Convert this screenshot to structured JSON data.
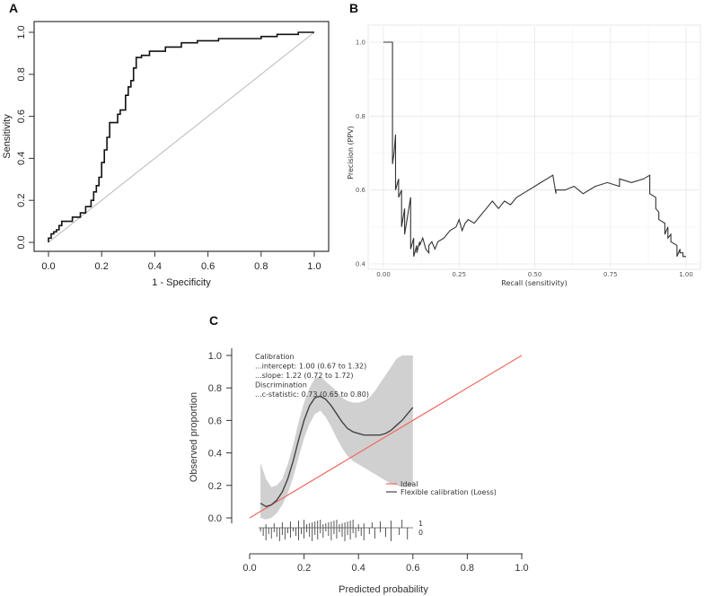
{
  "chart_data": [
    {
      "panel": "A",
      "type": "line",
      "title": "",
      "xlabel": "1 - Specificity",
      "ylabel": "Sensitivity",
      "xlim": [
        0,
        1
      ],
      "ylim": [
        0,
        1
      ],
      "xticks": [
        "0.0",
        "0.2",
        "0.4",
        "0.6",
        "0.8",
        "1.0"
      ],
      "yticks": [
        "0.0",
        "0.2",
        "0.4",
        "0.6",
        "0.8",
        "1.0"
      ],
      "series": [
        {
          "name": "ROC curve",
          "x": [
            0.0,
            0.0,
            0.01,
            0.01,
            0.02,
            0.02,
            0.03,
            0.03,
            0.04,
            0.04,
            0.05,
            0.05,
            0.09,
            0.09,
            0.12,
            0.12,
            0.14,
            0.14,
            0.16,
            0.16,
            0.17,
            0.17,
            0.18,
            0.18,
            0.19,
            0.19,
            0.2,
            0.2,
            0.21,
            0.21,
            0.22,
            0.22,
            0.23,
            0.23,
            0.24,
            0.24,
            0.26,
            0.26,
            0.27,
            0.27,
            0.29,
            0.29,
            0.3,
            0.3,
            0.31,
            0.31,
            0.32,
            0.32,
            0.33,
            0.33,
            0.34,
            0.34,
            0.35,
            0.35,
            0.38,
            0.38,
            0.44,
            0.44,
            0.5,
            0.5,
            0.56,
            0.56,
            0.64,
            0.64,
            0.72,
            0.72,
            0.8,
            0.8,
            0.86,
            0.86,
            0.94,
            0.94,
            1.0
          ],
          "y": [
            0.0,
            0.02,
            0.02,
            0.04,
            0.04,
            0.05,
            0.05,
            0.06,
            0.06,
            0.08,
            0.08,
            0.1,
            0.1,
            0.12,
            0.12,
            0.14,
            0.14,
            0.17,
            0.17,
            0.2,
            0.2,
            0.24,
            0.24,
            0.27,
            0.27,
            0.31,
            0.31,
            0.38,
            0.38,
            0.44,
            0.44,
            0.5,
            0.5,
            0.57,
            0.57,
            0.57,
            0.57,
            0.61,
            0.61,
            0.63,
            0.63,
            0.7,
            0.7,
            0.74,
            0.74,
            0.77,
            0.77,
            0.83,
            0.83,
            0.88,
            0.88,
            0.88,
            0.88,
            0.89,
            0.89,
            0.91,
            0.91,
            0.93,
            0.93,
            0.95,
            0.95,
            0.96,
            0.96,
            0.97,
            0.97,
            0.97,
            0.97,
            0.98,
            0.98,
            0.99,
            0.99,
            1.0,
            1.0
          ]
        },
        {
          "name": "Reference line",
          "x": [
            0,
            1
          ],
          "y": [
            0,
            1
          ]
        }
      ]
    },
    {
      "panel": "B",
      "type": "line",
      "title": "",
      "xlabel": "Recall (sensitivity)",
      "ylabel": "Precision (PPV)",
      "xlim": [
        0,
        1
      ],
      "ylim": [
        0.4,
        1.0
      ],
      "xticks": [
        "0.00",
        "0.25",
        "0.50",
        "0.75",
        "1.00"
      ],
      "yticks": [
        "0.4",
        "0.6",
        "0.8",
        "1.0"
      ],
      "series": [
        {
          "name": "Precision-recall curve",
          "x": [
            0.0,
            0.03,
            0.03,
            0.03,
            0.035,
            0.04,
            0.04,
            0.05,
            0.05,
            0.06,
            0.06,
            0.07,
            0.07,
            0.09,
            0.09,
            0.1,
            0.1,
            0.11,
            0.11,
            0.12,
            0.12,
            0.13,
            0.14,
            0.15,
            0.15,
            0.16,
            0.17,
            0.18,
            0.2,
            0.22,
            0.24,
            0.25,
            0.26,
            0.27,
            0.28,
            0.3,
            0.32,
            0.34,
            0.36,
            0.38,
            0.4,
            0.42,
            0.44,
            0.46,
            0.48,
            0.5,
            0.52,
            0.54,
            0.56,
            0.57,
            0.57,
            0.6,
            0.63,
            0.66,
            0.7,
            0.74,
            0.78,
            0.78,
            0.82,
            0.86,
            0.88,
            0.88,
            0.9,
            0.9,
            0.91,
            0.91,
            0.93,
            0.93,
            0.94,
            0.94,
            0.95,
            0.95,
            0.97,
            0.97,
            0.98,
            0.98,
            0.99,
            0.99,
            1.0
          ],
          "y": [
            1.0,
            1.0,
            0.98,
            0.67,
            0.7,
            0.75,
            0.6,
            0.63,
            0.58,
            0.6,
            0.5,
            0.55,
            0.48,
            0.58,
            0.44,
            0.47,
            0.42,
            0.45,
            0.43,
            0.46,
            0.45,
            0.47,
            0.44,
            0.43,
            0.45,
            0.46,
            0.44,
            0.46,
            0.47,
            0.49,
            0.5,
            0.52,
            0.49,
            0.51,
            0.52,
            0.51,
            0.53,
            0.55,
            0.57,
            0.55,
            0.57,
            0.56,
            0.58,
            0.59,
            0.6,
            0.61,
            0.62,
            0.63,
            0.64,
            0.59,
            0.6,
            0.6,
            0.61,
            0.59,
            0.61,
            0.62,
            0.61,
            0.63,
            0.62,
            0.63,
            0.64,
            0.59,
            0.58,
            0.55,
            0.54,
            0.52,
            0.51,
            0.48,
            0.5,
            0.47,
            0.48,
            0.46,
            0.45,
            0.42,
            0.44,
            0.43,
            0.43,
            0.42,
            0.42
          ]
        }
      ]
    },
    {
      "panel": "C",
      "type": "line",
      "title": "",
      "xlabel": "Predicted probability",
      "ylabel": "Observed proportion",
      "xlim": [
        0,
        1
      ],
      "ylim": [
        -0.15,
        1.0
      ],
      "xticks": [
        "0.0",
        "0.2",
        "0.4",
        "0.6",
        "0.8",
        "1.0"
      ],
      "yticks": [
        "0.0",
        "0.2",
        "0.4",
        "0.6",
        "0.8",
        "1.0"
      ],
      "stats": [
        "Calibration",
        "...intercept: 1.00 (0.67 to 1.32)",
        "...slope: 1.22 (0.72 to 1.72)",
        "Discrimination",
        "...c-statistic: 0.73 (0.65 to 0.80)"
      ],
      "legend": [
        "Ideal",
        "Flexible calibration (Loess)"
      ],
      "rug_labels": [
        "1",
        "0"
      ],
      "colors": {
        "ideal": "#ef6b64",
        "loess": "#444444",
        "band": "#c8c8c8"
      },
      "series": [
        {
          "name": "Ideal",
          "x": [
            0,
            1
          ],
          "y": [
            0,
            1
          ]
        },
        {
          "name": "Flexible calibration (Loess)",
          "x": [
            0.04,
            0.06,
            0.08,
            0.1,
            0.12,
            0.14,
            0.16,
            0.18,
            0.2,
            0.22,
            0.24,
            0.26,
            0.28,
            0.3,
            0.32,
            0.34,
            0.36,
            0.38,
            0.4,
            0.42,
            0.44,
            0.46,
            0.48,
            0.5,
            0.52,
            0.54,
            0.56,
            0.58,
            0.6
          ],
          "y": [
            0.09,
            0.07,
            0.08,
            0.11,
            0.16,
            0.24,
            0.35,
            0.48,
            0.6,
            0.69,
            0.74,
            0.75,
            0.73,
            0.69,
            0.64,
            0.59,
            0.55,
            0.53,
            0.52,
            0.51,
            0.51,
            0.51,
            0.51,
            0.52,
            0.54,
            0.57,
            0.6,
            0.64,
            0.68
          ],
          "lower": [
            0.0,
            -0.01,
            0.0,
            0.03,
            0.08,
            0.15,
            0.25,
            0.37,
            0.49,
            0.58,
            0.64,
            0.66,
            0.62,
            0.56,
            0.49,
            0.43,
            0.38,
            0.35,
            0.33,
            0.31,
            0.29,
            0.27,
            0.25,
            0.23,
            0.21,
            0.2,
            0.19,
            0.19,
            0.2
          ],
          "upper": [
            0.34,
            0.24,
            0.19,
            0.2,
            0.24,
            0.33,
            0.45,
            0.59,
            0.71,
            0.8,
            0.86,
            0.87,
            0.84,
            0.81,
            0.78,
            0.74,
            0.72,
            0.71,
            0.71,
            0.72,
            0.74,
            0.78,
            0.83,
            0.88,
            0.93,
            0.98,
            1.0,
            1.0,
            1.0
          ]
        }
      ],
      "rug_events": [
        0.06,
        0.09,
        0.12,
        0.15,
        0.18,
        0.2,
        0.21,
        0.22,
        0.23,
        0.24,
        0.25,
        0.26,
        0.27,
        0.28,
        0.29,
        0.3,
        0.31,
        0.32,
        0.33,
        0.34,
        0.35,
        0.36,
        0.37,
        0.38,
        0.4,
        0.42,
        0.45,
        0.48,
        0.52,
        0.56
      ],
      "rug_nonevents": [
        0.04,
        0.05,
        0.06,
        0.07,
        0.08,
        0.09,
        0.1,
        0.11,
        0.12,
        0.13,
        0.14,
        0.15,
        0.16,
        0.17,
        0.18,
        0.19,
        0.2,
        0.21,
        0.22,
        0.23,
        0.24,
        0.25,
        0.26,
        0.27,
        0.28,
        0.29,
        0.3,
        0.31,
        0.32,
        0.33,
        0.34,
        0.35,
        0.36,
        0.37,
        0.38,
        0.39,
        0.4,
        0.41,
        0.42,
        0.44,
        0.46,
        0.48,
        0.5,
        0.52,
        0.55,
        0.58
      ]
    }
  ],
  "panel_labels": [
    "A",
    "B",
    "C"
  ]
}
